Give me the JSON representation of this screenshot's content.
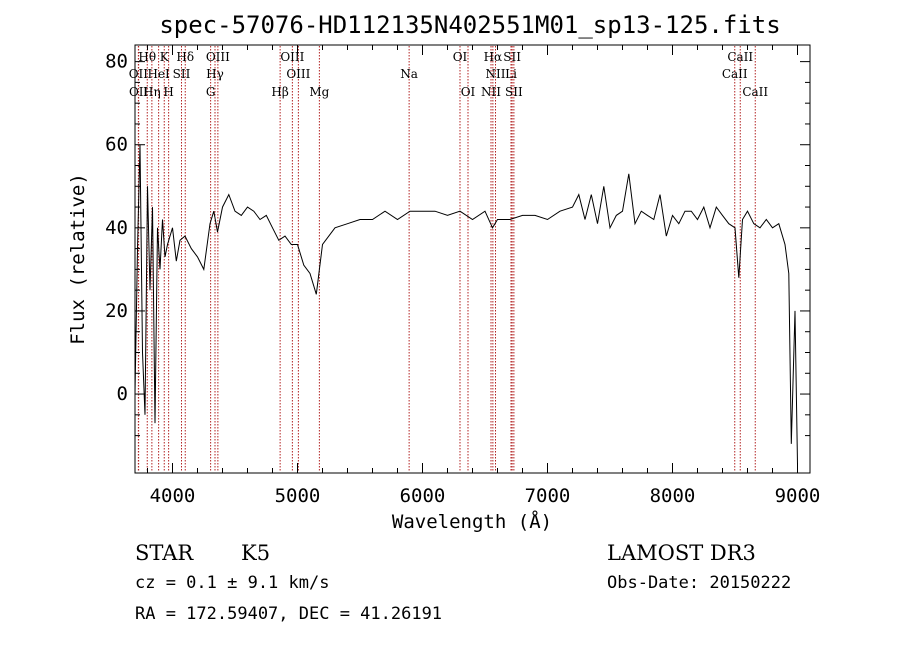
{
  "chart_data": {
    "type": "line",
    "title": "spec-57076-HD112135N402551M01_sp13-125.fits",
    "xlabel": "Wavelength (Å)",
    "ylabel": "Flux (relative)",
    "xlim": [
      3700,
      9100
    ],
    "ylim": [
      -19,
      84
    ],
    "x_ticks": [
      4000,
      5000,
      6000,
      7000,
      8000,
      9000
    ],
    "y_ticks": [
      0,
      20,
      40,
      60,
      80
    ],
    "grid": false,
    "series": [
      {
        "name": "spectrum",
        "x": [
          3700,
          3720,
          3740,
          3760,
          3780,
          3800,
          3820,
          3840,
          3860,
          3880,
          3900,
          3920,
          3940,
          3960,
          3980,
          4000,
          4030,
          4060,
          4100,
          4150,
          4200,
          4250,
          4300,
          4330,
          4360,
          4400,
          4450,
          4500,
          4550,
          4600,
          4650,
          4700,
          4750,
          4800,
          4850,
          4900,
          4950,
          5000,
          5050,
          5100,
          5150,
          5200,
          5250,
          5300,
          5400,
          5500,
          5600,
          5700,
          5800,
          5900,
          6000,
          6100,
          6200,
          6300,
          6400,
          6500,
          6560,
          6600,
          6700,
          6800,
          6900,
          7000,
          7100,
          7200,
          7250,
          7300,
          7350,
          7400,
          7450,
          7500,
          7550,
          7600,
          7650,
          7700,
          7750,
          7800,
          7850,
          7900,
          7950,
          8000,
          8050,
          8100,
          8150,
          8200,
          8250,
          8300,
          8350,
          8400,
          8450,
          8500,
          8530,
          8560,
          8600,
          8650,
          8700,
          8750,
          8800,
          8850,
          8900,
          8930,
          8950,
          8980,
          9000
        ],
        "y": [
          0,
          35,
          60,
          10,
          -5,
          50,
          25,
          45,
          -7,
          40,
          30,
          42,
          33,
          36,
          38,
          40,
          32,
          37,
          38,
          35,
          33,
          30,
          41,
          44,
          39,
          45,
          48,
          44,
          43,
          45,
          44,
          42,
          43,
          40,
          37,
          38,
          36,
          36,
          31,
          29,
          24,
          36,
          38,
          40,
          41,
          42,
          42,
          44,
          42,
          44,
          44,
          44,
          43,
          44,
          42,
          44,
          40,
          42,
          42,
          43,
          43,
          42,
          44,
          45,
          48,
          42,
          48,
          41,
          50,
          40,
          43,
          44,
          53,
          41,
          44,
          43,
          42,
          48,
          38,
          43,
          41,
          44,
          44,
          42,
          45,
          40,
          45,
          43,
          41,
          40,
          28,
          42,
          44,
          41,
          40,
          42,
          40,
          41,
          36,
          29,
          -12,
          20,
          -17
        ]
      }
    ],
    "spectral_lines_top": [
      {
        "name": "Hθ",
        "x": 3798
      },
      {
        "name": "K",
        "x": 3934
      },
      {
        "name": "Hδ",
        "x": 4102
      },
      {
        "name": "OIII",
        "x": 4363
      },
      {
        "name": "OIII",
        "x": 4959
      },
      {
        "name": "OI",
        "x": 6300
      },
      {
        "name": "Hα",
        "x": 6563
      },
      {
        "name": "SII",
        "x": 6717
      },
      {
        "name": "CaII",
        "x": 8542
      }
    ],
    "spectral_lines_mid": [
      {
        "name": "OII",
        "x": 3727
      },
      {
        "name": "HeI",
        "x": 3889
      },
      {
        "name": "SII",
        "x": 4072
      },
      {
        "name": "Hγ",
        "x": 4340
      },
      {
        "name": "OIII",
        "x": 5007
      },
      {
        "name": "Na",
        "x": 5893
      },
      {
        "name": "NII",
        "x": 6584
      },
      {
        "name": "Li",
        "x": 6708
      },
      {
        "name": "CaII",
        "x": 8498
      }
    ],
    "spectral_lines_low": [
      {
        "name": "OII",
        "x": 3729
      },
      {
        "name": "Hη",
        "x": 3835
      },
      {
        "name": "H",
        "x": 3969
      },
      {
        "name": "G",
        "x": 4305
      },
      {
        "name": "Hβ",
        "x": 4861
      },
      {
        "name": "Mg",
        "x": 5175
      },
      {
        "name": "OI",
        "x": 6364
      },
      {
        "name": "NII",
        "x": 6548
      },
      {
        "name": "SII",
        "x": 6731
      },
      {
        "name": "CaII",
        "x": 8662
      }
    ],
    "line_color": "#000000",
    "marker_color": "#b22222"
  },
  "footer": {
    "object_class": "STAR",
    "subclass": "K5",
    "cz": "cz = 0.1 ± 9.1 km/s",
    "coords": "RA = 172.59407, DEC =  41.26191",
    "survey": "LAMOST DR3",
    "obs_date": "Obs-Date: 20150222"
  }
}
